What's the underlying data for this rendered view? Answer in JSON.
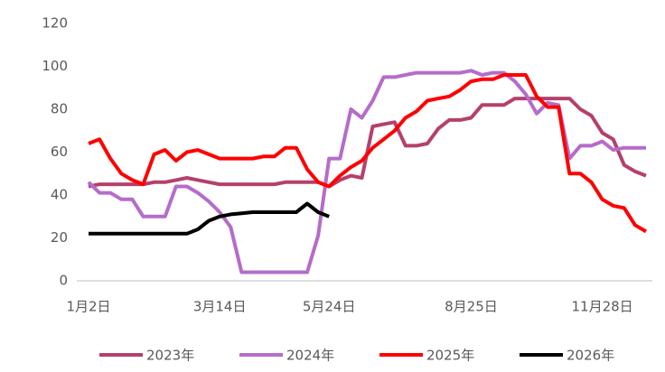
{
  "chart_data": {
    "type": "line",
    "categories": [
      "1月2日",
      null,
      null,
      null,
      null,
      null,
      null,
      null,
      null,
      null,
      null,
      null,
      "3月14日",
      null,
      null,
      null,
      null,
      null,
      null,
      null,
      null,
      null,
      "5月24日",
      null,
      null,
      null,
      null,
      null,
      null,
      null,
      null,
      null,
      null,
      null,
      null,
      "8月25日",
      null,
      null,
      null,
      null,
      null,
      null,
      null,
      null,
      null,
      null,
      null,
      "11月28日",
      null,
      null,
      null,
      null
    ],
    "series": [
      {
        "name": "2023年",
        "color": "#b5406c",
        "values": [
          44,
          45,
          45,
          45,
          45,
          45,
          46,
          46,
          47,
          48,
          47,
          46,
          45,
          45,
          45,
          45,
          45,
          45,
          46,
          46,
          46,
          46,
          44,
          47,
          49,
          48,
          72,
          73,
          74,
          63,
          63,
          64,
          71,
          75,
          75,
          76,
          82,
          82,
          82,
          85,
          85,
          85,
          85,
          85,
          85,
          80,
          77,
          69,
          66,
          54,
          51,
          49
        ]
      },
      {
        "name": "2024年",
        "color": "#b56cca",
        "values": [
          46,
          41,
          41,
          38,
          38,
          30,
          30,
          30,
          44,
          44,
          41,
          37,
          32,
          25,
          4,
          4,
          4,
          4,
          4,
          4,
          4,
          21,
          57,
          57,
          80,
          76,
          84,
          95,
          95,
          96,
          97,
          97,
          97,
          97,
          97,
          98,
          96,
          97,
          97,
          93,
          87,
          78,
          83,
          82,
          57,
          63,
          63,
          65,
          61,
          62,
          62,
          62
        ]
      },
      {
        "name": "2025年",
        "color": "#ff0000",
        "values": [
          64,
          66,
          57,
          50,
          47,
          45,
          59,
          61,
          56,
          60,
          61,
          59,
          57,
          57,
          57,
          57,
          58,
          58,
          62,
          62,
          52,
          46,
          44,
          49,
          53,
          56,
          62,
          66,
          70,
          76,
          79,
          84,
          85,
          86,
          89,
          93,
          94,
          94,
          96,
          96,
          96,
          86,
          81,
          81,
          50,
          50,
          46,
          38,
          35,
          34,
          26,
          23
        ]
      },
      {
        "name": "2026年",
        "color": "#000000",
        "values": [
          22,
          22,
          22,
          22,
          22,
          22,
          22,
          22,
          22,
          22,
          24,
          28,
          30,
          31,
          31.5,
          32,
          32,
          32,
          32,
          32,
          36,
          32,
          30,
          null,
          null,
          null,
          null,
          null,
          null,
          null,
          null,
          null,
          null,
          null,
          null,
          null,
          null,
          null,
          null,
          null,
          null,
          null,
          null,
          null,
          null,
          null,
          null,
          null,
          null,
          null,
          null,
          null
        ]
      }
    ],
    "ylim": [
      0,
      120
    ],
    "yticks": [
      0,
      20,
      40,
      60,
      80,
      100,
      120
    ],
    "grid": false,
    "legend": "bottom"
  }
}
